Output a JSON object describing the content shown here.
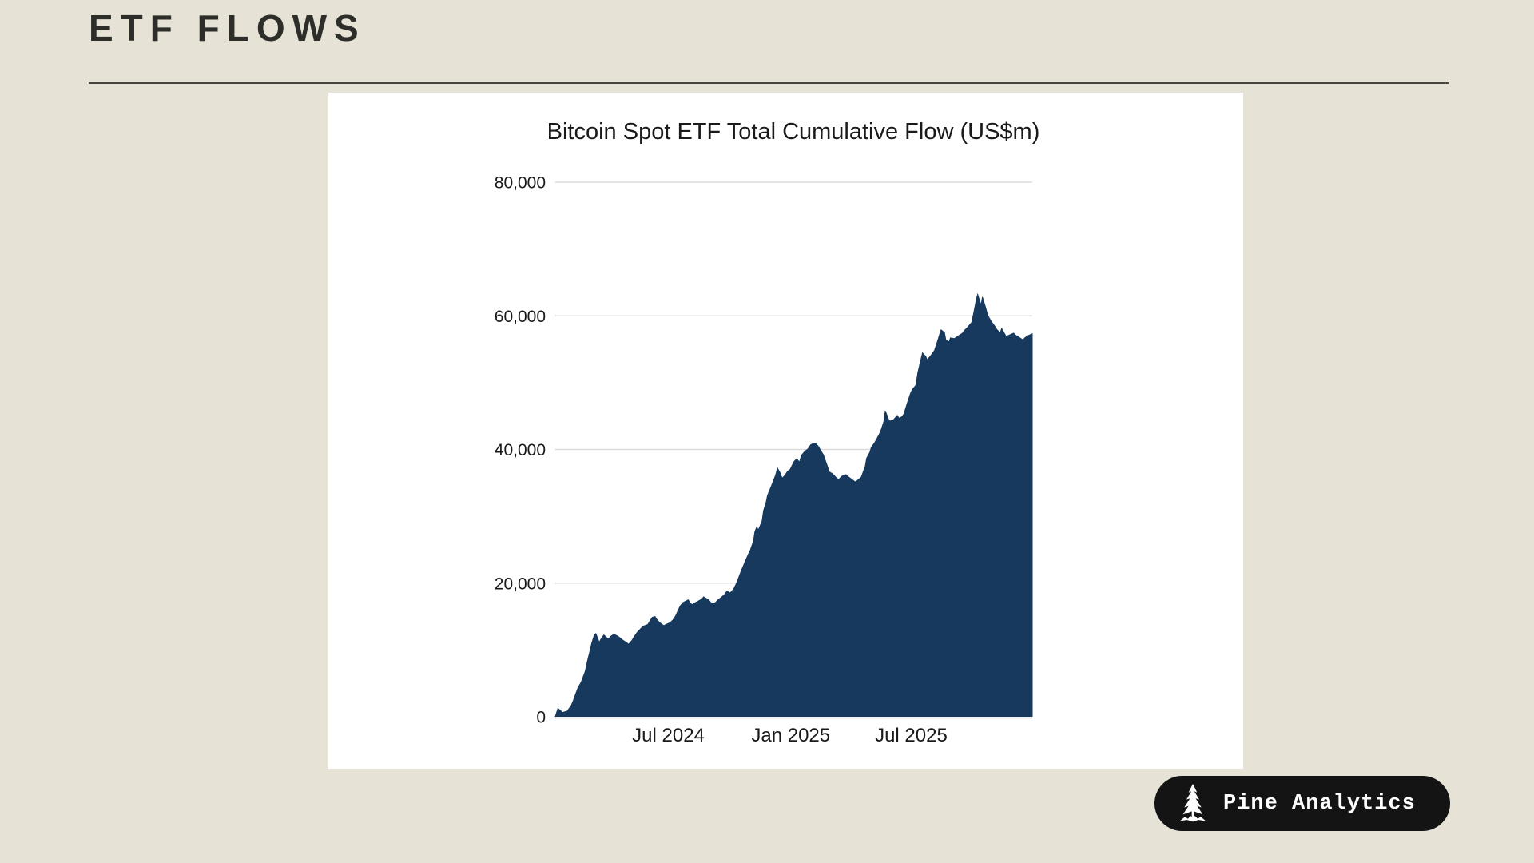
{
  "page": {
    "title": "ETF FLOWS",
    "background_color": "#e6e2d6"
  },
  "badge": {
    "label": "Pine Analytics",
    "icon": "pine-tree-icon",
    "background_color": "#141414",
    "text_color": "#ffffff"
  },
  "chart_data": {
    "type": "area",
    "title": "Bitcoin Spot ETF Total Cumulative Flow (US$m)",
    "series_name": "Total cumulative flow",
    "fill_color": "#17395e",
    "grid_color": "#dcdcdc",
    "zero_line_color": "#c2c2c2",
    "text_color": "#1a1a1a",
    "legend": "none",
    "grid": "horizontal",
    "ylim": [
      0,
      80000
    ],
    "y_ticks": [
      0,
      20000,
      40000,
      60000,
      80000
    ],
    "y_tick_labels": [
      "0",
      "20,000",
      "40,000",
      "60,000",
      "80,000"
    ],
    "x_ticks": [
      "2024-07-01",
      "2025-01-01",
      "2025-07-01"
    ],
    "x_tick_labels": [
      "Jul 2024",
      "Jan 2025",
      "Jul 2025"
    ],
    "x_range": [
      "2024-01-13",
      "2025-12-30"
    ],
    "points": [
      [
        "2024-01-13",
        0
      ],
      [
        "2024-01-17",
        1250
      ],
      [
        "2024-01-20",
        1000
      ],
      [
        "2024-01-24",
        650
      ],
      [
        "2024-01-31",
        850
      ],
      [
        "2024-02-06",
        1700
      ],
      [
        "2024-02-09",
        2400
      ],
      [
        "2024-02-13",
        3500
      ],
      [
        "2024-02-16",
        4300
      ],
      [
        "2024-02-21",
        5200
      ],
      [
        "2024-02-27",
        6800
      ],
      [
        "2024-03-01",
        8200
      ],
      [
        "2024-03-05",
        9800
      ],
      [
        "2024-03-08",
        11100
      ],
      [
        "2024-03-12",
        12300
      ],
      [
        "2024-03-14",
        12450
      ],
      [
        "2024-03-19",
        11150
      ],
      [
        "2024-03-22",
        11700
      ],
      [
        "2024-03-26",
        12250
      ],
      [
        "2024-04-02",
        11600
      ],
      [
        "2024-04-05",
        12000
      ],
      [
        "2024-04-10",
        12350
      ],
      [
        "2024-04-16",
        12050
      ],
      [
        "2024-04-23",
        11500
      ],
      [
        "2024-04-30",
        11050
      ],
      [
        "2024-05-02",
        10850
      ],
      [
        "2024-05-07",
        11400
      ],
      [
        "2024-05-10",
        11900
      ],
      [
        "2024-05-15",
        12600
      ],
      [
        "2024-05-21",
        13250
      ],
      [
        "2024-05-24",
        13550
      ],
      [
        "2024-05-31",
        13800
      ],
      [
        "2024-06-05",
        14600
      ],
      [
        "2024-06-07",
        14900
      ],
      [
        "2024-06-11",
        15000
      ],
      [
        "2024-06-14",
        14500
      ],
      [
        "2024-06-18",
        14100
      ],
      [
        "2024-06-24",
        13650
      ],
      [
        "2024-06-28",
        13850
      ],
      [
        "2024-07-03",
        14050
      ],
      [
        "2024-07-08",
        14500
      ],
      [
        "2024-07-12",
        15100
      ],
      [
        "2024-07-16",
        16000
      ],
      [
        "2024-07-19",
        16600
      ],
      [
        "2024-07-23",
        17100
      ],
      [
        "2024-07-31",
        17500
      ],
      [
        "2024-08-02",
        17100
      ],
      [
        "2024-08-06",
        16750
      ],
      [
        "2024-08-09",
        17000
      ],
      [
        "2024-08-14",
        17250
      ],
      [
        "2024-08-20",
        17600
      ],
      [
        "2024-08-23",
        17950
      ],
      [
        "2024-08-27",
        17700
      ],
      [
        "2024-08-30",
        17550
      ],
      [
        "2024-09-04",
        16950
      ],
      [
        "2024-09-10",
        17100
      ],
      [
        "2024-09-13",
        17450
      ],
      [
        "2024-09-19",
        17900
      ],
      [
        "2024-09-24",
        18350
      ],
      [
        "2024-09-27",
        18800
      ],
      [
        "2024-10-02",
        18550
      ],
      [
        "2024-10-07",
        19100
      ],
      [
        "2024-10-11",
        19900
      ],
      [
        "2024-10-15",
        20900
      ],
      [
        "2024-10-18",
        21700
      ],
      [
        "2024-10-23",
        22900
      ],
      [
        "2024-10-29",
        24300
      ],
      [
        "2024-11-01",
        24900
      ],
      [
        "2024-11-06",
        26300
      ],
      [
        "2024-11-08",
        27700
      ],
      [
        "2024-11-11",
        28450
      ],
      [
        "2024-11-13",
        27900
      ],
      [
        "2024-11-19",
        29300
      ],
      [
        "2024-11-21",
        30800
      ],
      [
        "2024-11-25",
        32100
      ],
      [
        "2024-11-27",
        33100
      ],
      [
        "2024-12-04",
        34800
      ],
      [
        "2024-12-09",
        36100
      ],
      [
        "2024-12-12",
        37200
      ],
      [
        "2024-12-16",
        36500
      ],
      [
        "2024-12-19",
        35700
      ],
      [
        "2024-12-23",
        36100
      ],
      [
        "2024-12-27",
        36700
      ],
      [
        "2024-12-31",
        37000
      ],
      [
        "2025-01-06",
        38200
      ],
      [
        "2025-01-10",
        38600
      ],
      [
        "2025-01-14",
        38100
      ],
      [
        "2025-01-17",
        39100
      ],
      [
        "2025-01-22",
        39700
      ],
      [
        "2025-01-27",
        40100
      ],
      [
        "2025-01-31",
        40700
      ],
      [
        "2025-02-04",
        40900
      ],
      [
        "2025-02-07",
        40950
      ],
      [
        "2025-02-12",
        40400
      ],
      [
        "2025-02-14",
        40000
      ],
      [
        "2025-02-19",
        39200
      ],
      [
        "2025-02-24",
        37800
      ],
      [
        "2025-02-28",
        36650
      ],
      [
        "2025-03-05",
        36350
      ],
      [
        "2025-03-11",
        35700
      ],
      [
        "2025-03-14",
        35500
      ],
      [
        "2025-03-19",
        36000
      ],
      [
        "2025-03-25",
        36250
      ],
      [
        "2025-03-28",
        35950
      ],
      [
        "2025-04-03",
        35500
      ],
      [
        "2025-04-08",
        35150
      ],
      [
        "2025-04-11",
        35350
      ],
      [
        "2025-04-17",
        35850
      ],
      [
        "2025-04-23",
        37500
      ],
      [
        "2025-04-25",
        38700
      ],
      [
        "2025-04-30",
        39600
      ],
      [
        "2025-05-02",
        40300
      ],
      [
        "2025-05-07",
        41000
      ],
      [
        "2025-05-09",
        41350
      ],
      [
        "2025-05-14",
        42300
      ],
      [
        "2025-05-16",
        42700
      ],
      [
        "2025-05-21",
        44200
      ],
      [
        "2025-05-23",
        45800
      ],
      [
        "2025-05-28",
        44500
      ],
      [
        "2025-05-30",
        44250
      ],
      [
        "2025-06-04",
        44400
      ],
      [
        "2025-06-10",
        45100
      ],
      [
        "2025-06-13",
        44650
      ],
      [
        "2025-06-17",
        44900
      ],
      [
        "2025-06-20",
        45300
      ],
      [
        "2025-06-25",
        46900
      ],
      [
        "2025-06-30",
        48400
      ],
      [
        "2025-07-03",
        49000
      ],
      [
        "2025-07-08",
        49600
      ],
      [
        "2025-07-11",
        51500
      ],
      [
        "2025-07-15",
        53200
      ],
      [
        "2025-07-18",
        54450
      ],
      [
        "2025-07-23",
        53900
      ],
      [
        "2025-07-25",
        53400
      ],
      [
        "2025-07-31",
        54100
      ],
      [
        "2025-08-05",
        54800
      ],
      [
        "2025-08-08",
        55700
      ],
      [
        "2025-08-13",
        57300
      ],
      [
        "2025-08-15",
        57900
      ],
      [
        "2025-08-20",
        57500
      ],
      [
        "2025-08-22",
        56400
      ],
      [
        "2025-08-27",
        56100
      ],
      [
        "2025-08-29",
        56700
      ],
      [
        "2025-09-04",
        56600
      ],
      [
        "2025-09-10",
        57000
      ],
      [
        "2025-09-16",
        57400
      ],
      [
        "2025-09-19",
        57800
      ],
      [
        "2025-09-24",
        58300
      ],
      [
        "2025-09-30",
        59000
      ],
      [
        "2025-10-03",
        60400
      ],
      [
        "2025-10-07",
        62500
      ],
      [
        "2025-10-09",
        63200
      ],
      [
        "2025-10-14",
        61600
      ],
      [
        "2025-10-16",
        62800
      ],
      [
        "2025-10-21",
        61200
      ],
      [
        "2025-10-24",
        60100
      ],
      [
        "2025-10-29",
        59200
      ],
      [
        "2025-11-04",
        58400
      ],
      [
        "2025-11-07",
        57900
      ],
      [
        "2025-11-12",
        57500
      ],
      [
        "2025-11-14",
        58100
      ],
      [
        "2025-11-18",
        57400
      ],
      [
        "2025-11-21",
        56900
      ],
      [
        "2025-11-25",
        57100
      ],
      [
        "2025-12-02",
        57400
      ],
      [
        "2025-12-05",
        57100
      ],
      [
        "2025-12-10",
        56800
      ],
      [
        "2025-12-16",
        56400
      ],
      [
        "2025-12-19",
        56700
      ],
      [
        "2025-12-23",
        57000
      ],
      [
        "2025-12-30",
        57300
      ]
    ]
  }
}
